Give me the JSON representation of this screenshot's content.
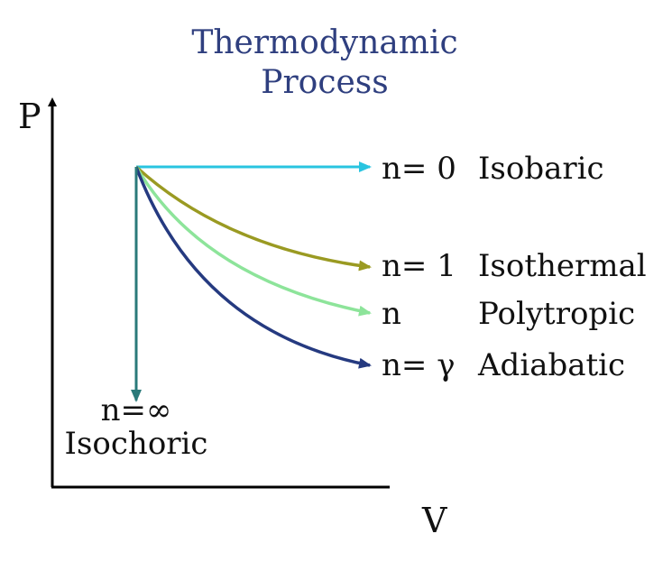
{
  "title_line1": "Thermodynamic",
  "title_line2": "Process",
  "axes": {
    "y_label": "P",
    "x_label": "V"
  },
  "processes": [
    {
      "n_label": "n= 0",
      "name": "Isobaric",
      "color": "#29c4e0"
    },
    {
      "n_label": "n= 1",
      "name": "Isothermal",
      "color": "#9a9a22"
    },
    {
      "n_label": "n",
      "name": "Polytropic",
      "color": "#8de49a"
    },
    {
      "n_label": "n= γ",
      "name": "Adiabatic",
      "color": "#253a80"
    },
    {
      "n_label": "n=∞",
      "name": "Isochoric",
      "color": "#2a7a7a"
    }
  ],
  "colors": {
    "title": "#2f3f7f",
    "axis": "#000000",
    "text": "#111111"
  }
}
